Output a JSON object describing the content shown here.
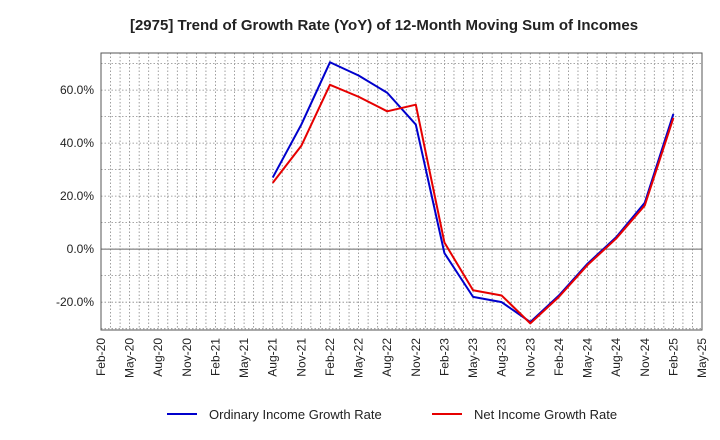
{
  "chart_data": {
    "type": "line",
    "title": "[2975]  Trend of Growth Rate (YoY) of 12-Month Moving Sum of Incomes",
    "xlabel": "",
    "ylabel": "",
    "x_tick_labels": [
      "Feb-20",
      "May-20",
      "Aug-20",
      "Nov-20",
      "Feb-21",
      "May-21",
      "Aug-21",
      "Nov-21",
      "Feb-22",
      "May-22",
      "Aug-22",
      "Nov-22",
      "Feb-23",
      "May-23",
      "Aug-23",
      "Nov-23",
      "Feb-24",
      "May-24",
      "Aug-24",
      "Nov-24",
      "Feb-25",
      "May-25"
    ],
    "y_tick_labels": [
      "60.0%",
      "40.0%",
      "20.0%",
      "0.0%",
      "-20.0%"
    ],
    "y_ticks": [
      60,
      40,
      20,
      0,
      -20
    ],
    "ylim": [
      -30.5,
      74
    ],
    "grid": true,
    "legend_position": "bottom",
    "series": [
      {
        "name": "Ordinary Income Growth Rate",
        "color": "#0000cc",
        "points": [
          [
            "Aug-21",
            27.0
          ],
          [
            "Nov-21",
            47.0
          ],
          [
            "Feb-22",
            70.5
          ],
          [
            "May-22",
            65.5
          ],
          [
            "Aug-22",
            59.0
          ],
          [
            "Nov-22",
            47.0
          ],
          [
            "Feb-23",
            -1.5
          ],
          [
            "May-23",
            -18.0
          ],
          [
            "Aug-23",
            -20.0
          ],
          [
            "Nov-23",
            -27.5
          ],
          [
            "Feb-24",
            -17.5
          ],
          [
            "May-24",
            -5.5
          ],
          [
            "Aug-24",
            4.5
          ],
          [
            "Nov-24",
            17.5
          ],
          [
            "Feb-25",
            51.0
          ]
        ]
      },
      {
        "name": "Net Income Growth Rate",
        "color": "#e60000",
        "points": [
          [
            "Aug-21",
            25.0
          ],
          [
            "Nov-21",
            39.0
          ],
          [
            "Feb-22",
            62.0
          ],
          [
            "May-22",
            57.5
          ],
          [
            "Aug-22",
            52.0
          ],
          [
            "Nov-22",
            54.5
          ],
          [
            "Feb-23",
            2.5
          ],
          [
            "May-23",
            -15.5
          ],
          [
            "Aug-23",
            -17.5
          ],
          [
            "Nov-23",
            -28.0
          ],
          [
            "Feb-24",
            -18.0
          ],
          [
            "May-24",
            -6.0
          ],
          [
            "Aug-24",
            4.0
          ],
          [
            "Nov-24",
            16.5
          ],
          [
            "Feb-25",
            49.5
          ]
        ]
      }
    ]
  }
}
